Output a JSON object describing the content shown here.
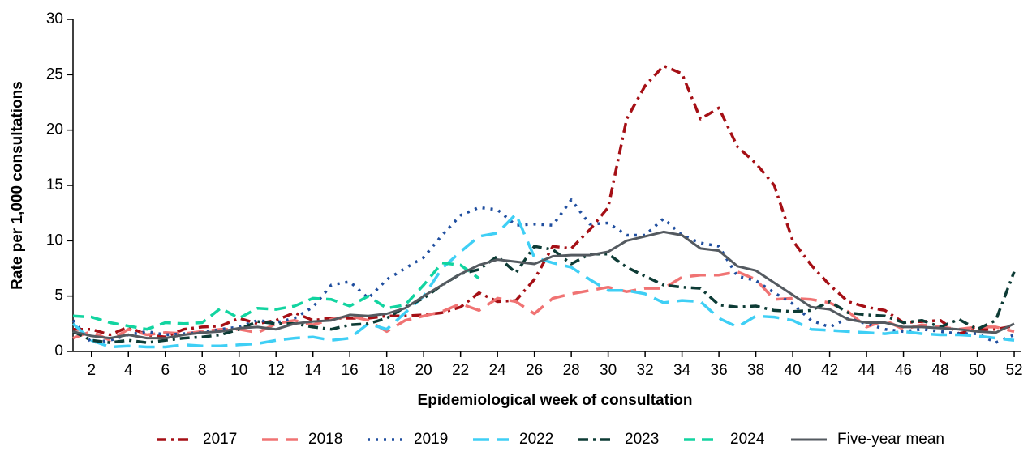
{
  "chart_data": {
    "type": "line",
    "x_label": "Epidemiological week of consultation",
    "y_label": "Rate per 1,000 consultations",
    "x": [
      1,
      2,
      3,
      4,
      5,
      6,
      7,
      8,
      9,
      10,
      11,
      12,
      13,
      14,
      15,
      16,
      17,
      18,
      19,
      20,
      21,
      22,
      23,
      24,
      25,
      26,
      27,
      28,
      29,
      30,
      31,
      32,
      33,
      34,
      35,
      36,
      37,
      38,
      39,
      40,
      41,
      42,
      43,
      44,
      45,
      46,
      47,
      48,
      49,
      50,
      51,
      52
    ],
    "xlim": [
      1,
      52.35
    ],
    "xticks": [
      2,
      4,
      6,
      8,
      10,
      12,
      14,
      16,
      18,
      20,
      22,
      24,
      26,
      28,
      30,
      32,
      34,
      36,
      38,
      40,
      42,
      44,
      46,
      48,
      50,
      52
    ],
    "ylim": [
      0,
      30
    ],
    "yticks": [
      0,
      5,
      10,
      15,
      20,
      25,
      30
    ],
    "legend": "bottom",
    "series": [
      {
        "name": "2017",
        "color": "#a50f15",
        "dash": "dashdot",
        "values": [
          2,
          2,
          1.5,
          2.2,
          1.5,
          1.3,
          2,
          2.2,
          2.3,
          3,
          2.5,
          2.8,
          3.5,
          2.8,
          3,
          3,
          3,
          3.2,
          3.2,
          3.3,
          3.5,
          4,
          5.3,
          4.5,
          4.6,
          6.5,
          9.5,
          9.3,
          11,
          13,
          21,
          24,
          25.8,
          25.1,
          21,
          22,
          18.5,
          17,
          15,
          10,
          7.8,
          6,
          4.5,
          4,
          3.7,
          2.6,
          2.7,
          2.8,
          1.6,
          2,
          2,
          2.3
        ]
      },
      {
        "name": "2018",
        "color": "#f07373",
        "dash": "longdash",
        "values": [
          1.2,
          1.8,
          1,
          2,
          1.5,
          1.7,
          1.6,
          1.8,
          2,
          2,
          1.7,
          2.5,
          2.8,
          2.4,
          2.9,
          3.2,
          2.8,
          1.8,
          2.8,
          3.2,
          3.6,
          4.3,
          3.7,
          4.8,
          4.5,
          3.4,
          4.8,
          5.2,
          5.5,
          5.8,
          5.4,
          5.7,
          5.7,
          6.7,
          6.9,
          6.9,
          7.2,
          6.5,
          4.7,
          4.8,
          4.7,
          4.4,
          3.6,
          2.2,
          2.8,
          2,
          2.4,
          2.2,
          2,
          2.2,
          2.2,
          1.8
        ]
      },
      {
        "name": "2019",
        "color": "#1f4e9f",
        "dash": "dotted",
        "values": [
          2.8,
          0.8,
          1,
          1.5,
          1.8,
          1.5,
          1.6,
          1.7,
          2,
          2.2,
          2.8,
          2.6,
          3,
          4,
          6,
          6.3,
          4.8,
          6.5,
          7.5,
          8.5,
          10.5,
          12.3,
          13,
          12.8,
          11.4,
          11.5,
          11.4,
          13.7,
          11.5,
          11.6,
          10.5,
          10.5,
          12,
          10.5,
          9.8,
          9.5,
          6.8,
          6.4,
          5.3,
          4.3,
          2.8,
          2.2,
          3,
          2.5,
          2,
          1.8,
          2,
          1.8,
          1.6,
          1.6,
          0.8,
          1.5
        ]
      },
      {
        "name": "2022",
        "color": "#3fcff5",
        "dash": "longdash",
        "values": [
          2.5,
          1,
          0.4,
          0.5,
          0.4,
          0.4,
          0.6,
          0.5,
          0.5,
          0.6,
          0.7,
          1,
          1.2,
          1.3,
          1,
          1.2,
          2.5,
          2,
          3.5,
          5,
          7.5,
          9,
          10.4,
          10.7,
          12.4,
          8.5,
          8,
          7.6,
          6.5,
          5.5,
          5.5,
          5.2,
          4.4,
          4.6,
          4.5,
          3,
          2.2,
          3.2,
          3.1,
          2.8,
          2,
          1.9,
          1.8,
          1.7,
          1.6,
          1.8,
          1.6,
          1.5,
          1.5,
          1.4,
          1.2,
          1
        ]
      },
      {
        "name": "2023",
        "color": "#0d3b35",
        "dash": "dashdot",
        "values": [
          1.8,
          1,
          0.8,
          1,
          0.8,
          1,
          1.2,
          1.3,
          1.5,
          2,
          2.7,
          2.5,
          2.5,
          2.2,
          2,
          2.4,
          2.5,
          3,
          4,
          4.8,
          6,
          7,
          7.4,
          8.6,
          7.1,
          9.5,
          9.2,
          7.9,
          8.8,
          8.8,
          7.6,
          6.8,
          6,
          5.8,
          5.7,
          4.2,
          4,
          4.1,
          3.7,
          3.6,
          3.7,
          4.5,
          3.5,
          3.3,
          3.2,
          2.6,
          2.8,
          2.2,
          2.9,
          2,
          2.8,
          7.2
        ]
      },
      {
        "name": "2024",
        "color": "#12d4a0",
        "dash": "dashed",
        "values": [
          3.2,
          3.1,
          2.6,
          2.3,
          2,
          2.6,
          2.5,
          2.6,
          3.9,
          3,
          3.9,
          3.8,
          4.1,
          4.8,
          4.7,
          4.1,
          5,
          3.9,
          4.2,
          6,
          8,
          7.8,
          6.6,
          null,
          null,
          null,
          null,
          null,
          null,
          null,
          null,
          null,
          null,
          null,
          null,
          null,
          null,
          null,
          null,
          null,
          null,
          null,
          null,
          null,
          null,
          null,
          null,
          null,
          null,
          null,
          null,
          null
        ]
      },
      {
        "name": "Five-year mean",
        "color": "#545a60",
        "dash": "solid",
        "values": [
          1.8,
          1.4,
          1.2,
          1.5,
          1.2,
          1.2,
          1.5,
          1.7,
          1.8,
          2.1,
          2.2,
          2,
          2.5,
          2.7,
          2.8,
          3.3,
          3.2,
          3.4,
          3.9,
          5,
          6,
          7,
          7.8,
          8.3,
          8.1,
          7.9,
          8.6,
          8.7,
          8.7,
          9,
          10,
          10.4,
          10.8,
          10.5,
          9.3,
          9.1,
          7.7,
          7.3,
          6.2,
          5.1,
          4,
          3.8,
          2.9,
          2.6,
          2.6,
          2.2,
          2.2,
          2.1,
          2,
          1.8,
          1.7,
          2.5
        ]
      }
    ]
  }
}
